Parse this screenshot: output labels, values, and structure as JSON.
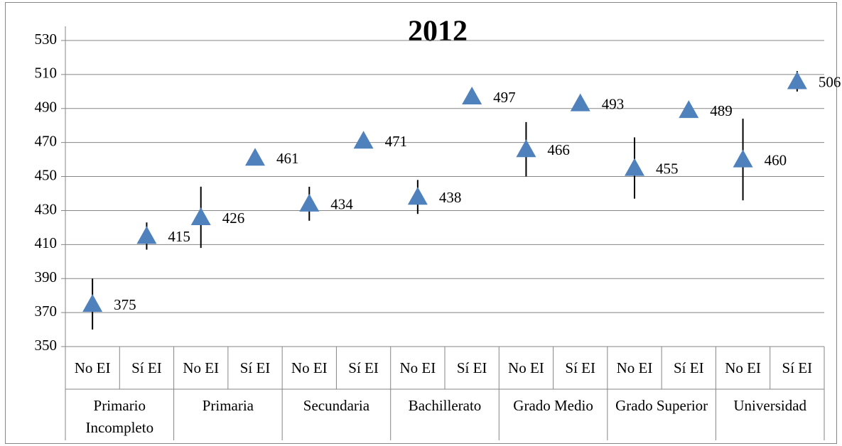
{
  "chart_data": {
    "type": "scatter-errorbar",
    "title": "2012",
    "categories": [
      "No EI",
      "Sí EI",
      "No EI",
      "Sí EI",
      "No EI",
      "Sí EI",
      "No EI",
      "Sí EI",
      "No EI",
      "Sí EI",
      "No EI",
      "Sí EI",
      "No EI",
      "Sí EI"
    ],
    "groups": [
      "Primario Incompleto",
      "Primaria",
      "Secundaria",
      "Bachillerato",
      "Grado Medio",
      "Grado Superior",
      "Universidad"
    ],
    "series": [
      {
        "color": "#4f81bd",
        "values": [
          375,
          415,
          426,
          461,
          434,
          471,
          438,
          497,
          466,
          493,
          455,
          489,
          460,
          506
        ],
        "errors": [
          15,
          8,
          18,
          4,
          10,
          4,
          10,
          4,
          16,
          4,
          18,
          4,
          24,
          6
        ]
      }
    ],
    "ylim": [
      350,
      530
    ],
    "yticks": [
      350,
      370,
      390,
      410,
      430,
      450,
      470,
      490,
      510,
      530
    ],
    "grid": true
  }
}
